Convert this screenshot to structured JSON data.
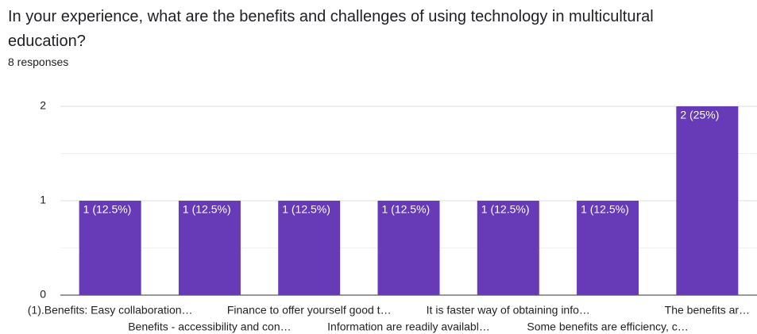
{
  "title": "In your experience, what are the benefits and challenges of using technology in multicultural education?",
  "subtitle": "8 responses",
  "chart_data": {
    "type": "bar",
    "categories": [
      "(1).Benefits: Easy collaboration…",
      "Benefits - accessibility and con…",
      "Finance to offer yourself good t…",
      "Information are readily availabl…",
      "It is faster way of obtaining info…",
      "Some benefits are efficiency, c…",
      "The benefits ar…"
    ],
    "values": [
      1,
      1,
      1,
      1,
      1,
      1,
      2
    ],
    "value_labels": [
      "1 (12.5%)",
      "1 (12.5%)",
      "1 (12.5%)",
      "1 (12.5%)",
      "1 (12.5%)",
      "1 (12.5%)",
      "2 (25%)"
    ],
    "color": "#673ab7",
    "ylim": [
      0,
      2
    ],
    "yticks": [
      0,
      1,
      2
    ],
    "grid": true
  }
}
